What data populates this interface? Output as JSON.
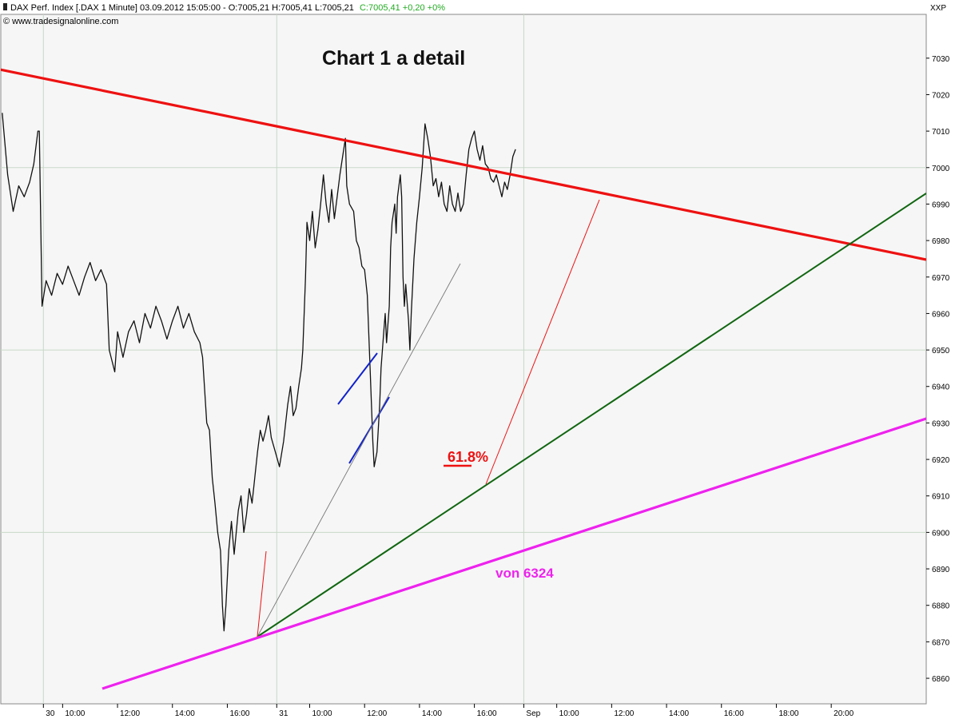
{
  "header": {
    "instrument": "DAX Perf. Index [.DAX  1 Minute] 03.09.2012 15:05:00 - O:7005,21 H:7005,41 L:7005,21",
    "change": "C:7005,41 +0,20 +0%",
    "source": "© www.tradesignalonline.com",
    "axis_code": "XXP"
  },
  "colors": {
    "resistance": "#ee1111",
    "green_trend": "#116611",
    "magenta_trend": "#ee22ee",
    "blue_channel": "#1122cc",
    "fib_red": "#ee1111",
    "gray_line": "#777777",
    "plot_bg": "#f6f6f6",
    "grid": "#c8d8c8"
  },
  "chart_data": {
    "type": "line",
    "title": "Chart 1 a detail",
    "ylim": [
      6853,
      7042
    ],
    "y_ticks": [
      6860,
      6870,
      6880,
      6890,
      6900,
      6910,
      6920,
      6930,
      6940,
      6950,
      6960,
      6970,
      6980,
      6990,
      7000,
      7010,
      7020,
      7030
    ],
    "y_gridlines": [
      6900,
      6950,
      7000
    ],
    "x_ticks": [
      {
        "label": "30",
        "t": 0.3
      },
      {
        "label": "10:00",
        "t": 1.0
      },
      {
        "label": "12:00",
        "t": 3.0
      },
      {
        "label": "14:00",
        "t": 5.0
      },
      {
        "label": "16:00",
        "t": 7.0
      },
      {
        "label": "31",
        "t": 8.8
      },
      {
        "label": "10:00",
        "t": 10.0
      },
      {
        "label": "12:00",
        "t": 12.0
      },
      {
        "label": "14:00",
        "t": 14.0
      },
      {
        "label": "16:00",
        "t": 16.0
      },
      {
        "label": "Sep",
        "t": 17.8
      },
      {
        "label": "10:00",
        "t": 19.0
      },
      {
        "label": "12:00",
        "t": 21.0
      },
      {
        "label": "14:00",
        "t": 23.0
      },
      {
        "label": "16:00",
        "t": 25.0
      },
      {
        "label": "18:00",
        "t": 27.0
      },
      {
        "label": "20:00",
        "t": 29.0
      }
    ],
    "x_gridlines": [
      0.3,
      8.8,
      17.8
    ],
    "series": [
      {
        "values": [
          [
            -1.2,
            7015
          ],
          [
            -1.0,
            6998
          ],
          [
            -0.8,
            6988
          ],
          [
            -0.6,
            6995
          ],
          [
            -0.4,
            6992
          ],
          [
            -0.2,
            6996
          ],
          [
            -0.05,
            7001
          ],
          [
            0.1,
            7010
          ],
          [
            0.15,
            7010
          ],
          [
            0.25,
            6962
          ],
          [
            0.4,
            6969
          ],
          [
            0.6,
            6965
          ],
          [
            0.8,
            6971
          ],
          [
            1.0,
            6968
          ],
          [
            1.2,
            6973
          ],
          [
            1.4,
            6969
          ],
          [
            1.6,
            6965
          ],
          [
            1.8,
            6970
          ],
          [
            2.0,
            6974
          ],
          [
            2.2,
            6969
          ],
          [
            2.4,
            6972
          ],
          [
            2.6,
            6968
          ],
          [
            2.7,
            6950
          ],
          [
            2.9,
            6944
          ],
          [
            3.0,
            6955
          ],
          [
            3.2,
            6948
          ],
          [
            3.4,
            6955
          ],
          [
            3.6,
            6958
          ],
          [
            3.8,
            6952
          ],
          [
            4.0,
            6960
          ],
          [
            4.2,
            6956
          ],
          [
            4.4,
            6962
          ],
          [
            4.6,
            6958
          ],
          [
            4.8,
            6953
          ],
          [
            5.0,
            6958
          ],
          [
            5.2,
            6962
          ],
          [
            5.4,
            6956
          ],
          [
            5.6,
            6960
          ],
          [
            5.8,
            6955
          ],
          [
            6.0,
            6952
          ],
          [
            6.1,
            6948
          ],
          [
            6.25,
            6930
          ],
          [
            6.35,
            6928
          ],
          [
            6.45,
            6915
          ],
          [
            6.55,
            6908
          ],
          [
            6.65,
            6900
          ],
          [
            6.75,
            6895
          ],
          [
            6.82,
            6880
          ],
          [
            6.88,
            6873
          ],
          [
            6.95,
            6880
          ],
          [
            7.05,
            6895
          ],
          [
            7.15,
            6903
          ],
          [
            7.25,
            6894
          ],
          [
            7.4,
            6906
          ],
          [
            7.5,
            6910
          ],
          [
            7.6,
            6900
          ],
          [
            7.7,
            6905
          ],
          [
            7.8,
            6912
          ],
          [
            7.9,
            6908
          ],
          [
            8.0,
            6915
          ],
          [
            8.1,
            6922
          ],
          [
            8.2,
            6928
          ],
          [
            8.3,
            6925
          ],
          [
            8.4,
            6928
          ],
          [
            8.5,
            6932
          ],
          [
            8.6,
            6926
          ],
          [
            8.75,
            6922
          ],
          [
            8.9,
            6918
          ],
          [
            9.05,
            6925
          ],
          [
            9.2,
            6935
          ],
          [
            9.3,
            6940
          ],
          [
            9.4,
            6932
          ],
          [
            9.5,
            6934
          ],
          [
            9.6,
            6940
          ],
          [
            9.7,
            6945
          ],
          [
            9.75,
            6950
          ],
          [
            9.85,
            6970
          ],
          [
            9.9,
            6985
          ],
          [
            10.0,
            6980
          ],
          [
            10.1,
            6988
          ],
          [
            10.2,
            6978
          ],
          [
            10.3,
            6983
          ],
          [
            10.4,
            6990
          ],
          [
            10.5,
            6998
          ],
          [
            10.6,
            6990
          ],
          [
            10.7,
            6985
          ],
          [
            10.8,
            6994
          ],
          [
            10.9,
            6986
          ],
          [
            11.0,
            6992
          ],
          [
            11.1,
            6998
          ],
          [
            11.2,
            7003
          ],
          [
            11.3,
            7008
          ],
          [
            11.35,
            6995
          ],
          [
            11.45,
            6990
          ],
          [
            11.6,
            6988
          ],
          [
            11.7,
            6980
          ],
          [
            11.8,
            6978
          ],
          [
            11.9,
            6973
          ],
          [
            12.0,
            6972
          ],
          [
            12.1,
            6965
          ],
          [
            12.2,
            6945
          ],
          [
            12.3,
            6925
          ],
          [
            12.35,
            6918
          ],
          [
            12.45,
            6922
          ],
          [
            12.55,
            6935
          ],
          [
            12.6,
            6945
          ],
          [
            12.7,
            6955
          ],
          [
            12.75,
            6960
          ],
          [
            12.8,
            6952
          ],
          [
            12.9,
            6962
          ],
          [
            12.95,
            6978
          ],
          [
            13.0,
            6985
          ],
          [
            13.1,
            6990
          ],
          [
            13.15,
            6982
          ],
          [
            13.2,
            6992
          ],
          [
            13.3,
            6998
          ],
          [
            13.35,
            6992
          ],
          [
            13.4,
            6970
          ],
          [
            13.45,
            6962
          ],
          [
            13.5,
            6968
          ],
          [
            13.6,
            6958
          ],
          [
            13.65,
            6950
          ],
          [
            13.7,
            6960
          ],
          [
            13.8,
            6975
          ],
          [
            13.9,
            6985
          ],
          [
            14.0,
            6992
          ],
          [
            14.1,
            7000
          ],
          [
            14.2,
            7012
          ],
          [
            14.3,
            7008
          ],
          [
            14.4,
            7003
          ],
          [
            14.5,
            6995
          ],
          [
            14.6,
            6997
          ],
          [
            14.7,
            6992
          ],
          [
            14.8,
            6996
          ],
          [
            14.9,
            6990
          ],
          [
            15.0,
            6988
          ],
          [
            15.1,
            6995
          ],
          [
            15.2,
            6990
          ],
          [
            15.3,
            6988
          ],
          [
            15.4,
            6993
          ],
          [
            15.5,
            6988
          ],
          [
            15.6,
            6990
          ],
          [
            15.7,
            6998
          ],
          [
            15.8,
            7005
          ],
          [
            15.9,
            7008
          ],
          [
            16.0,
            7010
          ],
          [
            16.1,
            7005
          ],
          [
            16.2,
            7002
          ],
          [
            16.3,
            7006
          ],
          [
            16.4,
            7001
          ],
          [
            16.5,
            7000
          ],
          [
            16.6,
            6997
          ],
          [
            16.7,
            6996
          ],
          [
            16.8,
            6998
          ],
          [
            16.9,
            6995
          ],
          [
            17.0,
            6992
          ],
          [
            17.1,
            6996
          ],
          [
            17.2,
            6994
          ],
          [
            17.3,
            6998
          ],
          [
            17.4,
            7003
          ],
          [
            17.5,
            7005
          ]
        ]
      }
    ],
    "annotations": [
      {
        "text": "61.8%",
        "color": "#ee1111"
      },
      {
        "text": "von 6324",
        "color": "#ee22ee"
      }
    ]
  }
}
